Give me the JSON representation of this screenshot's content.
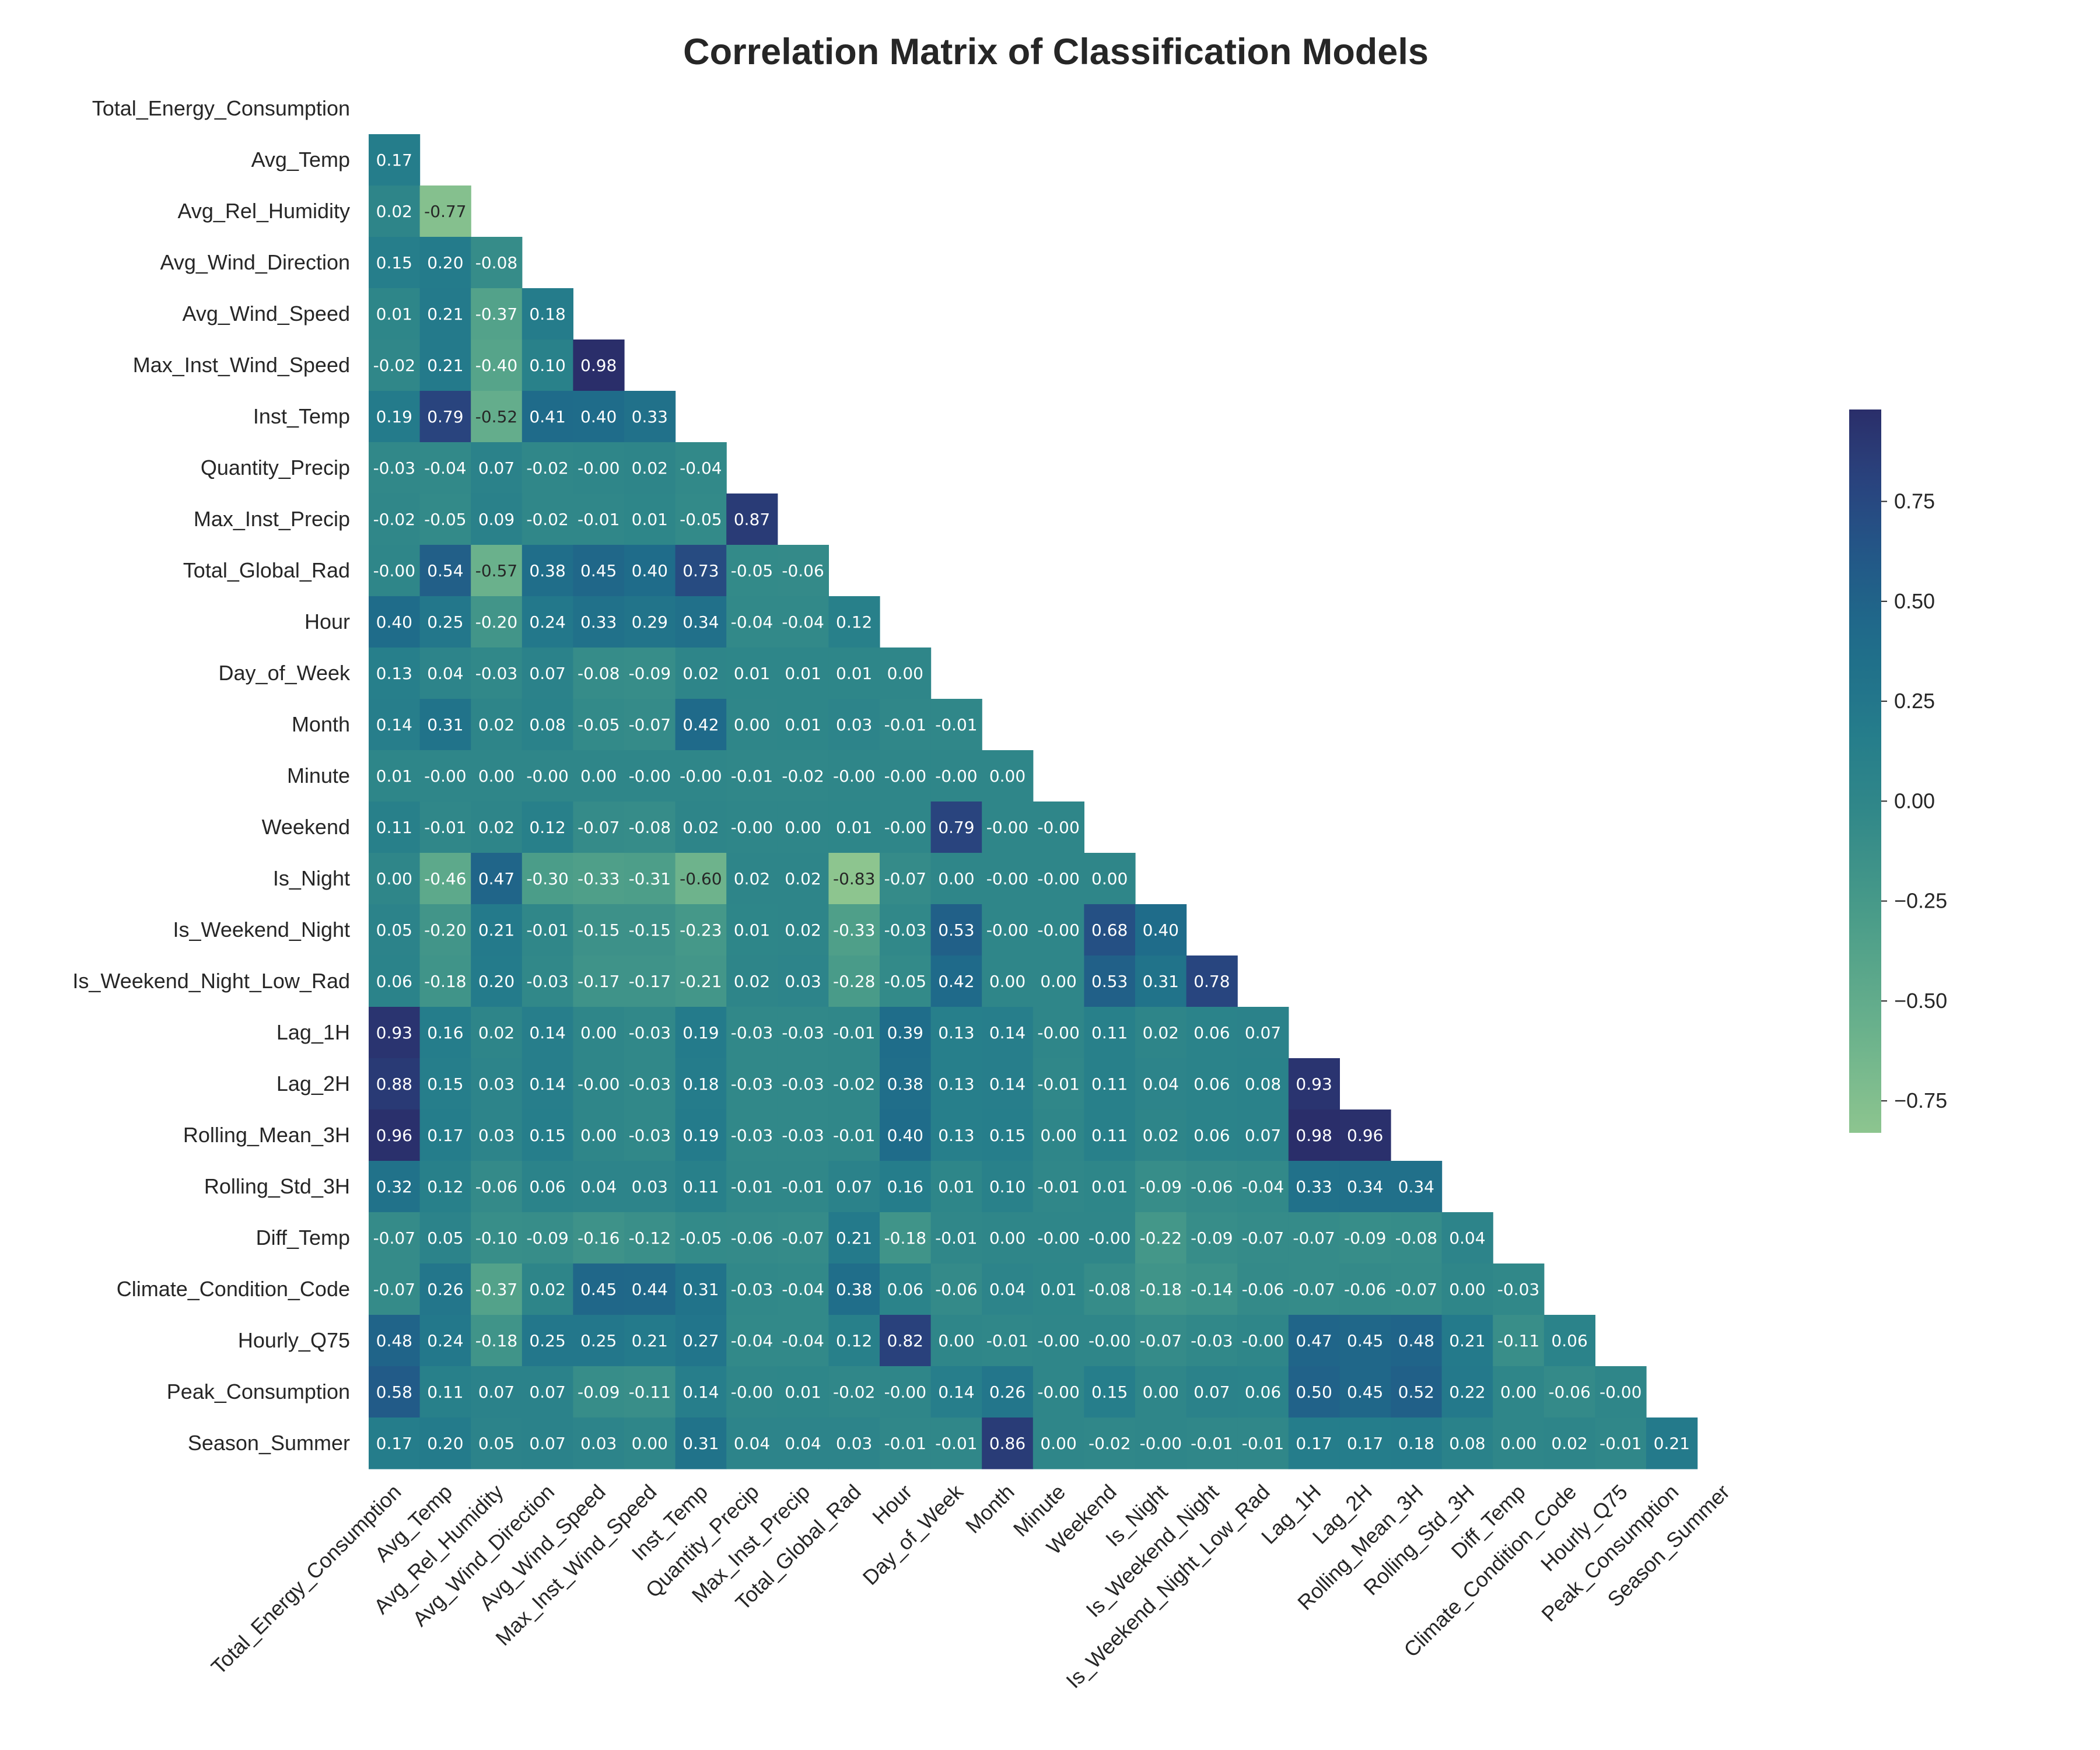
{
  "chart_data": {
    "type": "heatmap",
    "title": "Correlation Matrix of Classification Models",
    "xlabel": "",
    "ylabel": "",
    "mask": "upper-triangle-including-diagonal",
    "colormap": "crest",
    "colorbar": {
      "vmin": -0.83,
      "vmax": 0.98,
      "ticks": [
        0.75,
        0.5,
        0.25,
        0.0,
        -0.25,
        -0.5,
        -0.75
      ],
      "tick_labels": [
        "0.75",
        "0.50",
        "0.25",
        "0.00",
        "−0.25",
        "−0.50",
        "−0.75"
      ]
    },
    "variables": [
      "Total_Energy_Consumption",
      "Avg_Temp",
      "Avg_Rel_Humidity",
      "Avg_Wind_Direction",
      "Avg_Wind_Speed",
      "Max_Inst_Wind_Speed",
      "Inst_Temp",
      "Quantity_Precip",
      "Max_Inst_Precip",
      "Total_Global_Rad",
      "Hour",
      "Day_of_Week",
      "Month",
      "Minute",
      "Weekend",
      "Is_Night",
      "Is_Weekend_Night",
      "Is_Weekend_Night_Low_Rad",
      "Lag_1H",
      "Lag_2H",
      "Rolling_Mean_3H",
      "Rolling_Std_3H",
      "Diff_Temp",
      "Climate_Condition_Code",
      "Hourly_Q75",
      "Peak_Consumption",
      "Season_Summer"
    ],
    "rows": [
      [],
      [
        "0.17"
      ],
      [
        "0.02",
        "-0.77"
      ],
      [
        "0.15",
        "0.20",
        "-0.08"
      ],
      [
        "0.01",
        "0.21",
        "-0.37",
        "0.18"
      ],
      [
        "-0.02",
        "0.21",
        "-0.40",
        "0.10",
        "0.98"
      ],
      [
        "0.19",
        "0.79",
        "-0.52",
        "0.41",
        "0.40",
        "0.33"
      ],
      [
        "-0.03",
        "-0.04",
        "0.07",
        "-0.02",
        "-0.00",
        "0.02",
        "-0.04"
      ],
      [
        "-0.02",
        "-0.05",
        "0.09",
        "-0.02",
        "-0.01",
        "0.01",
        "-0.05",
        "0.87"
      ],
      [
        "-0.00",
        "0.54",
        "-0.57",
        "0.38",
        "0.45",
        "0.40",
        "0.73",
        "-0.05",
        "-0.06"
      ],
      [
        "0.40",
        "0.25",
        "-0.20",
        "0.24",
        "0.33",
        "0.29",
        "0.34",
        "-0.04",
        "-0.04",
        "0.12"
      ],
      [
        "0.13",
        "0.04",
        "-0.03",
        "0.07",
        "-0.08",
        "-0.09",
        "0.02",
        "0.01",
        "0.01",
        "0.01",
        "0.00"
      ],
      [
        "0.14",
        "0.31",
        "0.02",
        "0.08",
        "-0.05",
        "-0.07",
        "0.42",
        "0.00",
        "0.01",
        "0.03",
        "-0.01",
        "-0.01"
      ],
      [
        "0.01",
        "-0.00",
        "0.00",
        "-0.00",
        "0.00",
        "-0.00",
        "-0.00",
        "-0.01",
        "-0.02",
        "-0.00",
        "-0.00",
        "-0.00",
        "0.00"
      ],
      [
        "0.11",
        "-0.01",
        "0.02",
        "0.12",
        "-0.07",
        "-0.08",
        "0.02",
        "-0.00",
        "0.00",
        "0.01",
        "-0.00",
        "0.79",
        "-0.00",
        "-0.00"
      ],
      [
        "0.00",
        "-0.46",
        "0.47",
        "-0.30",
        "-0.33",
        "-0.31",
        "-0.60",
        "0.02",
        "0.02",
        "-0.83",
        "-0.07",
        "0.00",
        "-0.00",
        "-0.00",
        "0.00"
      ],
      [
        "0.05",
        "-0.20",
        "0.21",
        "-0.01",
        "-0.15",
        "-0.15",
        "-0.23",
        "0.01",
        "0.02",
        "-0.33",
        "-0.03",
        "0.53",
        "-0.00",
        "-0.00",
        "0.68",
        "0.40"
      ],
      [
        "0.06",
        "-0.18",
        "0.20",
        "-0.03",
        "-0.17",
        "-0.17",
        "-0.21",
        "0.02",
        "0.03",
        "-0.28",
        "-0.05",
        "0.42",
        "0.00",
        "0.00",
        "0.53",
        "0.31",
        "0.78"
      ],
      [
        "0.93",
        "0.16",
        "0.02",
        "0.14",
        "0.00",
        "-0.03",
        "0.19",
        "-0.03",
        "-0.03",
        "-0.01",
        "0.39",
        "0.13",
        "0.14",
        "-0.00",
        "0.11",
        "0.02",
        "0.06",
        "0.07"
      ],
      [
        "0.88",
        "0.15",
        "0.03",
        "0.14",
        "-0.00",
        "-0.03",
        "0.18",
        "-0.03",
        "-0.03",
        "-0.02",
        "0.38",
        "0.13",
        "0.14",
        "-0.01",
        "0.11",
        "0.04",
        "0.06",
        "0.08",
        "0.93"
      ],
      [
        "0.96",
        "0.17",
        "0.03",
        "0.15",
        "0.00",
        "-0.03",
        "0.19",
        "-0.03",
        "-0.03",
        "-0.01",
        "0.40",
        "0.13",
        "0.15",
        "0.00",
        "0.11",
        "0.02",
        "0.06",
        "0.07",
        "0.98",
        "0.96"
      ],
      [
        "0.32",
        "0.12",
        "-0.06",
        "0.06",
        "0.04",
        "0.03",
        "0.11",
        "-0.01",
        "-0.01",
        "0.07",
        "0.16",
        "0.01",
        "0.10",
        "-0.01",
        "0.01",
        "-0.09",
        "-0.06",
        "-0.04",
        "0.33",
        "0.34",
        "0.34"
      ],
      [
        "-0.07",
        "0.05",
        "-0.10",
        "-0.09",
        "-0.16",
        "-0.12",
        "-0.05",
        "-0.06",
        "-0.07",
        "0.21",
        "-0.18",
        "-0.01",
        "0.00",
        "-0.00",
        "-0.00",
        "-0.22",
        "-0.09",
        "-0.07",
        "-0.07",
        "-0.09",
        "-0.08",
        "0.04"
      ],
      [
        "-0.07",
        "0.26",
        "-0.37",
        "0.02",
        "0.45",
        "0.44",
        "0.31",
        "-0.03",
        "-0.04",
        "0.38",
        "0.06",
        "-0.06",
        "0.04",
        "0.01",
        "-0.08",
        "-0.18",
        "-0.14",
        "-0.06",
        "-0.07",
        "-0.06",
        "-0.07",
        "0.00",
        "-0.03"
      ],
      [
        "0.48",
        "0.24",
        "-0.18",
        "0.25",
        "0.25",
        "0.21",
        "0.27",
        "-0.04",
        "-0.04",
        "0.12",
        "0.82",
        "0.00",
        "-0.01",
        "-0.00",
        "-0.00",
        "-0.07",
        "-0.03",
        "-0.00",
        "0.47",
        "0.45",
        "0.48",
        "0.21",
        "-0.11",
        "0.06"
      ],
      [
        "0.58",
        "0.11",
        "0.07",
        "0.07",
        "-0.09",
        "-0.11",
        "0.14",
        "-0.00",
        "0.01",
        "-0.02",
        "-0.00",
        "0.14",
        "0.26",
        "-0.00",
        "0.15",
        "0.00",
        "0.07",
        "0.06",
        "0.50",
        "0.45",
        "0.52",
        "0.22",
        "0.00",
        "-0.06",
        "-0.00"
      ],
      [
        "0.17",
        "0.20",
        "0.05",
        "0.07",
        "0.03",
        "0.00",
        "0.31",
        "0.04",
        "0.04",
        "0.03",
        "-0.01",
        "-0.01",
        "0.86",
        "0.00",
        "-0.02",
        "-0.00",
        "-0.01",
        "-0.01",
        "0.17",
        "0.17",
        "0.18",
        "0.08",
        "0.00",
        "0.02",
        "-0.01",
        "0.21"
      ]
    ],
    "colors": {
      "low": "#8dc58f",
      "high": "#2a2e6a",
      "text_dark": "#262626",
      "text_light": "#ffffff"
    }
  }
}
